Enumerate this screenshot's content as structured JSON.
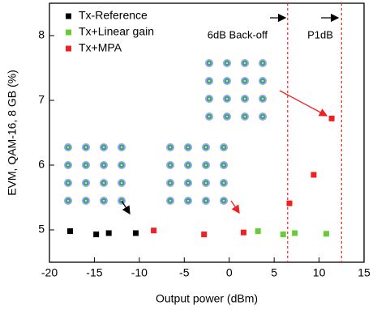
{
  "chart_data": {
    "type": "scatter",
    "xlabel": "Output power (dBm)",
    "ylabel": "EVM, QAM-16, 8 GB (%)",
    "xlim": [
      -20,
      15
    ],
    "xticks": [
      -20,
      -15,
      -10,
      -5,
      0,
      5,
      10,
      15
    ],
    "ylim": [
      4.5,
      8.5
    ],
    "yticks": [
      5,
      6,
      7,
      8
    ],
    "legend": "upper left",
    "series": [
      {
        "name": "Tx-Reference",
        "color": "#000000",
        "x": [
          -17.7,
          -14.8,
          -13.4,
          -10.4
        ],
        "values": [
          4.98,
          4.93,
          4.95,
          4.95
        ]
      },
      {
        "name": "Tx+Linear gain",
        "color": "#66cc33",
        "x": [
          3.2,
          6.0,
          7.3,
          10.8
        ],
        "values": [
          4.98,
          4.93,
          4.95,
          4.94
        ]
      },
      {
        "name": "Tx+MPA",
        "color": "#ee2222",
        "x": [
          -8.4,
          -2.8,
          1.6,
          6.7,
          9.4,
          11.4
        ],
        "values": [
          4.99,
          4.93,
          4.96,
          5.41,
          5.85,
          6.72
        ]
      }
    ],
    "vlines": [
      6.5,
      12.5
    ],
    "annotations": [
      "6dB Back-off",
      "P1dB"
    ]
  }
}
